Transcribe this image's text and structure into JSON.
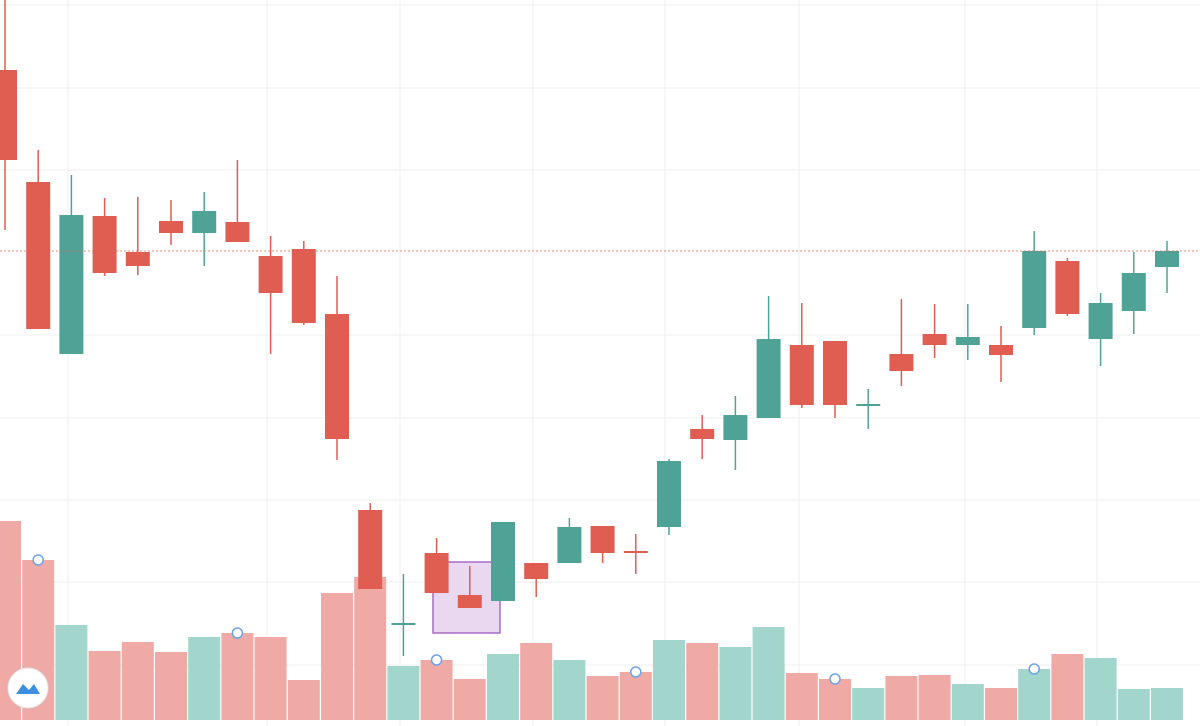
{
  "chart_data": {
    "type": "candlestick",
    "open": [
      67,
      55.8,
      38.6,
      52.4,
      48.8,
      51.9,
      50.7,
      51.8,
      48.4,
      49.1,
      42.6,
      23,
      11.6,
      18.7,
      14.5,
      13.9,
      17.7,
      17.7,
      21.4,
      18.9,
      21.3,
      31.1,
      30,
      32.2,
      39.5,
      39.9,
      33.5,
      38.6,
      40.6,
      39.5,
      39.5,
      41.2,
      47.9,
      40.1,
      42.9,
      47.3
    ],
    "high": [
      74,
      59,
      56.5,
      54.2,
      54.3,
      54,
      54.8,
      58,
      50.4,
      49.9,
      46.4,
      23.7,
      16.6,
      20.2,
      17.4,
      21.8,
      17.7,
      22.2,
      21.4,
      20.6,
      28.1,
      32.5,
      34.4,
      44.4,
      43.7,
      39.9,
      35.1,
      44.1,
      43.6,
      43.6,
      41.4,
      50.9,
      48.2,
      44.7,
      48.8,
      49.9
    ],
    "low": [
      51,
      41.1,
      38.6,
      46.4,
      46.5,
      49.5,
      47.4,
      49.8,
      38.6,
      41.5,
      28,
      15.1,
      8.4,
      14.7,
      13.2,
      13.9,
      14.3,
      17.7,
      17.7,
      16.6,
      20.5,
      28.1,
      27,
      32.2,
      33.2,
      32.2,
      31.1,
      35.4,
      38.2,
      38,
      35.8,
      40.5,
      42.4,
      37.4,
      40.6,
      44.7
    ],
    "close": [
      58,
      41.1,
      52.5,
      46.7,
      47.4,
      50.7,
      52.9,
      49.8,
      44.7,
      41.7,
      30.1,
      15.1,
      11.7,
      14.7,
      13.2,
      21.8,
      16.1,
      21.3,
      18.7,
      18.7,
      27.9,
      30.1,
      32.5,
      40.1,
      33.5,
      33.5,
      33.6,
      36.9,
      39.5,
      40.3,
      38.5,
      48.9,
      42.6,
      43.7,
      46.7,
      48.9
    ],
    "volume": [
      199,
      160,
      95,
      69,
      78,
      68,
      83,
      87,
      83,
      40,
      127,
      143,
      54,
      60,
      41,
      66,
      77,
      60,
      44,
      48,
      80,
      77,
      73,
      93,
      47,
      41,
      32,
      44,
      45,
      36,
      32,
      51,
      66,
      62,
      31,
      32
    ],
    "ylim": [
      1.4,
      74
    ],
    "volume_ylim": [
      0,
      210
    ],
    "up_color": "#4fa396",
    "down_color": "#e05d52",
    "volume_up_color": "#a2d5cc",
    "volume_down_color": "#efaaa6",
    "grid": true
  }
}
